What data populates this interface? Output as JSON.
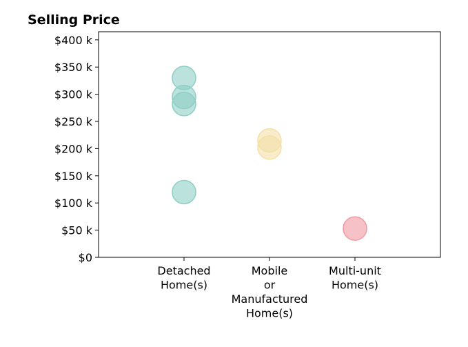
{
  "chart_data": {
    "type": "scatter",
    "title": "Selling Price",
    "xlabel": "",
    "ylabel": "",
    "categories": [
      [
        "Detached",
        "Home(s)"
      ],
      [
        "Mobile",
        "or",
        "Manufactured",
        "Home(s)"
      ],
      [
        "Multi-unit",
        "Home(s)"
      ]
    ],
    "ylim": [
      0,
      415000
    ],
    "yticks": [
      {
        "value": 0,
        "label": "$0"
      },
      {
        "value": 50000,
        "label": "$50 k"
      },
      {
        "value": 100000,
        "label": "$100 k"
      },
      {
        "value": 150000,
        "label": "$150 k"
      },
      {
        "value": 200000,
        "label": "$200 k"
      },
      {
        "value": 250000,
        "label": "$250 k"
      },
      {
        "value": 300000,
        "label": "$300 k"
      },
      {
        "value": 350000,
        "label": "$350 k"
      },
      {
        "value": 400000,
        "label": "$400 k"
      }
    ],
    "grid": false,
    "points": [
      {
        "category": 0,
        "value": 330000,
        "color": "#8ecfc5"
      },
      {
        "category": 0,
        "value": 295000,
        "color": "#8ecfc5"
      },
      {
        "category": 0,
        "value": 282000,
        "color": "#8ecfc5"
      },
      {
        "category": 0,
        "value": 120000,
        "color": "#8ecfc5"
      },
      {
        "category": 1,
        "value": 215000,
        "color": "#f3dfa8"
      },
      {
        "category": 1,
        "value": 202000,
        "color": "#f3dfa8"
      },
      {
        "category": 2,
        "value": 53000,
        "color": "#f19aa2"
      }
    ]
  }
}
